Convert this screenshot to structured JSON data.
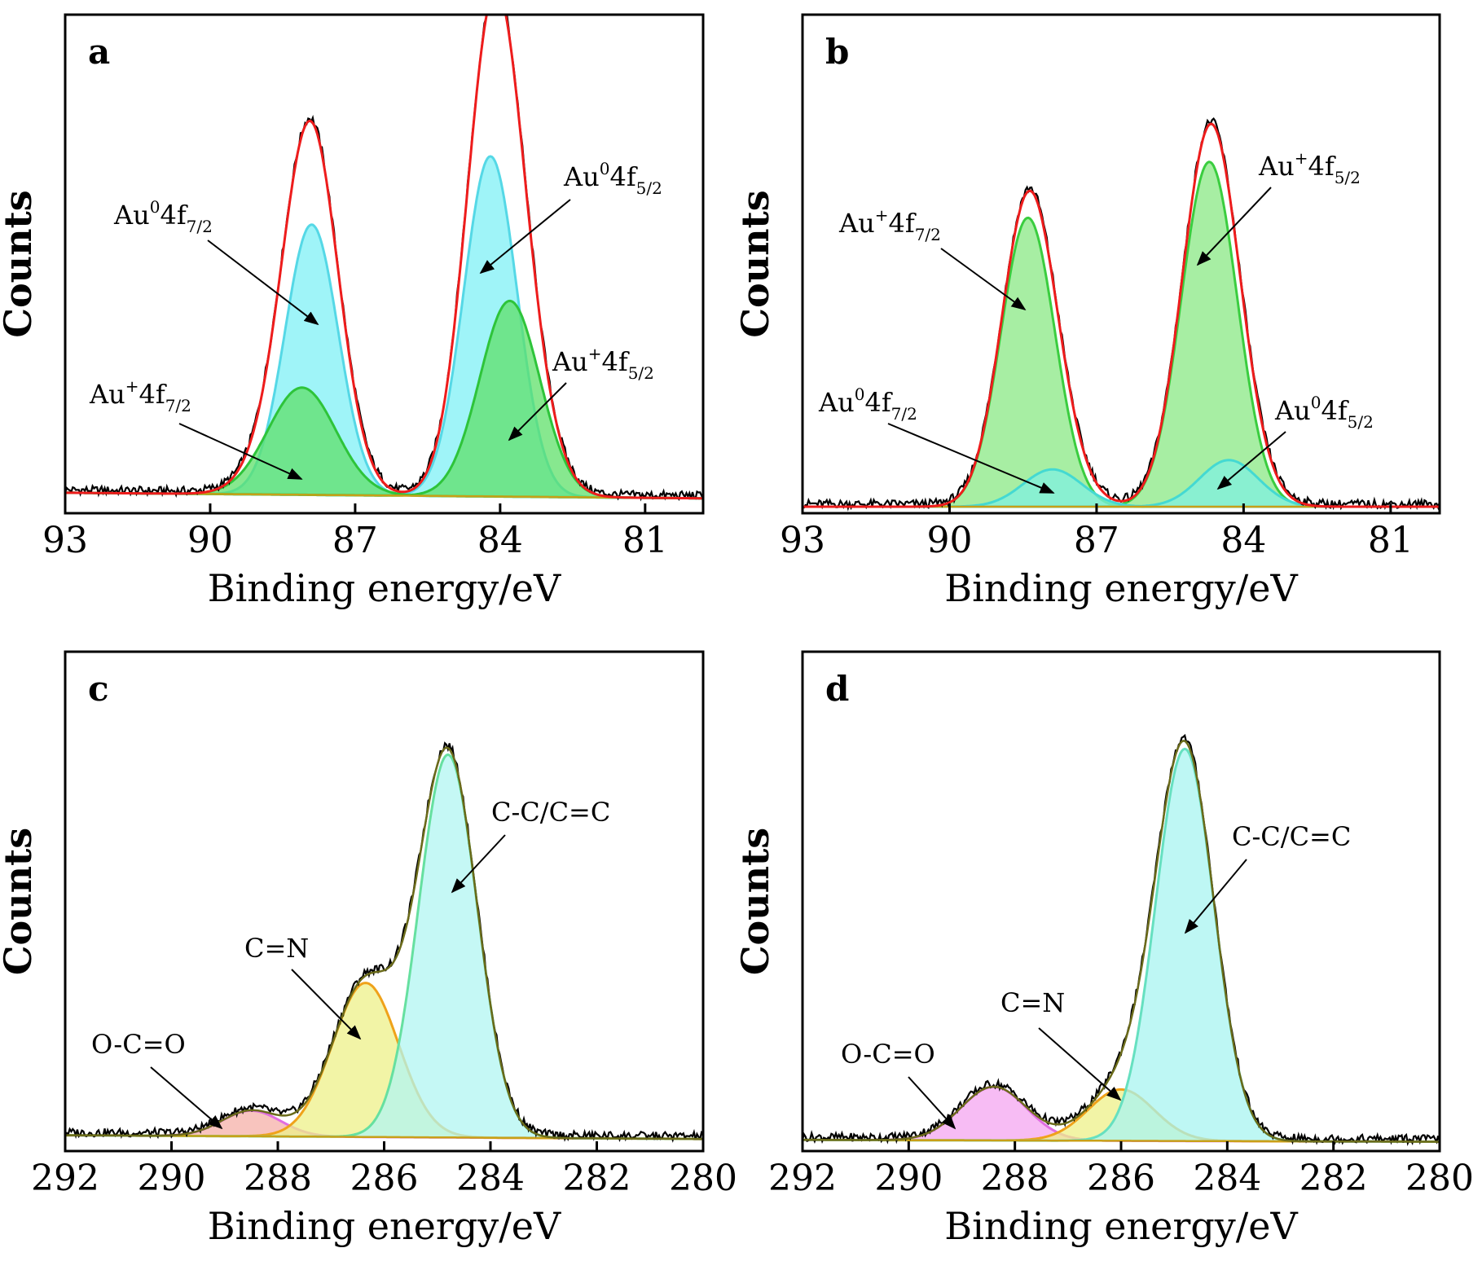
{
  "chart_data": [
    {
      "panel": "a",
      "type": "area",
      "xlabel": "Binding energy/eV",
      "ylabel": "Counts",
      "xlim": [
        93,
        79.8
      ],
      "reversed_x": true,
      "x_ticks": [
        93,
        90,
        87,
        84,
        81
      ],
      "ylim": [
        0,
        1.0
      ],
      "background": 0.03,
      "series": [
        {
          "key": "au0_72",
          "center": 87.9,
          "amp": 0.58,
          "sigma": 0.55,
          "fill": "#7ff0f6",
          "stroke": "#55d8e6"
        },
        {
          "key": "au0_52",
          "center": 84.2,
          "amp": 0.73,
          "sigma": 0.55,
          "fill": "#7ff0f6",
          "stroke": "#55d8e6"
        },
        {
          "key": "aup_72",
          "center": 88.1,
          "amp": 0.23,
          "sigma": 0.7,
          "fill": "#5fe06a",
          "stroke": "#2ec43a"
        },
        {
          "key": "aup_52",
          "center": 83.8,
          "amp": 0.42,
          "sigma": 0.62,
          "fill": "#5fe06a",
          "stroke": "#2ec43a"
        }
      ],
      "annotations": [
        {
          "base": "Au",
          "sup": "0",
          "main": "4f",
          "sub": "7/2"
        },
        {
          "base": "Au",
          "sup": "0",
          "main": "4f",
          "sub": "5/2"
        },
        {
          "base": "Au",
          "sup": "+",
          "main": "4f",
          "sub": "7/2"
        },
        {
          "base": "Au",
          "sup": "+",
          "main": "4f",
          "sub": "5/2"
        }
      ]
    },
    {
      "panel": "b",
      "type": "area",
      "xlabel": "Binding energy/eV",
      "ylabel": "Counts",
      "xlim": [
        93,
        80
      ],
      "reversed_x": true,
      "x_ticks": [
        93,
        90,
        87,
        84,
        81
      ],
      "ylim": [
        0,
        1.0
      ],
      "background": 0.0,
      "series": [
        {
          "key": "aup_72",
          "center": 88.4,
          "amp": 0.62,
          "sigma": 0.55,
          "fill": "#8ae884",
          "stroke": "#3acd3f"
        },
        {
          "key": "aup_52",
          "center": 84.7,
          "amp": 0.74,
          "sigma": 0.57,
          "fill": "#8ae884",
          "stroke": "#3acd3f"
        },
        {
          "key": "au0_72",
          "center": 87.9,
          "amp": 0.08,
          "sigma": 0.6,
          "fill": "#7ff0e0",
          "stroke": "#44d9d2"
        },
        {
          "key": "au0_52",
          "center": 84.3,
          "amp": 0.1,
          "sigma": 0.6,
          "fill": "#7ff0e0",
          "stroke": "#44d9d2"
        }
      ],
      "annotations": [
        {
          "base": "Au",
          "sup": "+",
          "main": "4f",
          "sub": "7/2"
        },
        {
          "base": "Au",
          "sup": "+",
          "main": "4f",
          "sub": "5/2"
        },
        {
          "base": "Au",
          "sup": "0",
          "main": "4f",
          "sub": "7/2"
        },
        {
          "base": "Au",
          "sup": "0",
          "main": "4f",
          "sub": "5/2"
        }
      ]
    },
    {
      "panel": "c",
      "type": "area",
      "xlabel": "Binding energy/eV",
      "ylabel": "Counts",
      "xlim": [
        292,
        280
      ],
      "reversed_x": true,
      "x_ticks": [
        292,
        290,
        288,
        286,
        284,
        282,
        280
      ],
      "ylim": [
        0,
        1.0
      ],
      "background": 0.02,
      "series": [
        {
          "key": "occ",
          "center": 288.5,
          "amp": 0.055,
          "sigma": 0.55,
          "fill": "#f6b0a8",
          "stroke": "#e06de0"
        },
        {
          "key": "cn",
          "center": 286.35,
          "amp": 0.33,
          "sigma": 0.62,
          "fill": "#eef088",
          "stroke": "#efa21a"
        },
        {
          "key": "cc",
          "center": 284.8,
          "amp": 0.82,
          "sigma": 0.55,
          "fill": "#b2f6f2",
          "stroke": "#66e0a0"
        }
      ],
      "annotations": [
        {
          "text": "O-C=O"
        },
        {
          "text": "C=N"
        },
        {
          "text": "C-C/C=C"
        }
      ]
    },
    {
      "panel": "d",
      "type": "area",
      "xlabel": "Binding energy/eV",
      "ylabel": "Counts",
      "xlim": [
        292,
        280
      ],
      "reversed_x": true,
      "x_ticks": [
        292,
        290,
        288,
        286,
        284,
        282,
        280
      ],
      "ylim": [
        0,
        1.0
      ],
      "background": 0.01,
      "series": [
        {
          "key": "occ",
          "center": 288.4,
          "amp": 0.115,
          "sigma": 0.62,
          "fill": "#f4a6f0",
          "stroke": "#e06de0"
        },
        {
          "key": "cn",
          "center": 286.0,
          "amp": 0.11,
          "sigma": 0.62,
          "fill": "#eef088",
          "stroke": "#efa21a"
        },
        {
          "key": "cc",
          "center": 284.8,
          "amp": 0.84,
          "sigma": 0.55,
          "fill": "#a8f4f0",
          "stroke": "#66e0c0"
        }
      ],
      "annotations": [
        {
          "text": "O-C=O"
        },
        {
          "text": "C=N"
        },
        {
          "text": "C-C/C=C"
        }
      ]
    }
  ],
  "colors": {
    "fit": "#ee1c1c",
    "raw": "#000000",
    "baseline": "#c8a018"
  }
}
